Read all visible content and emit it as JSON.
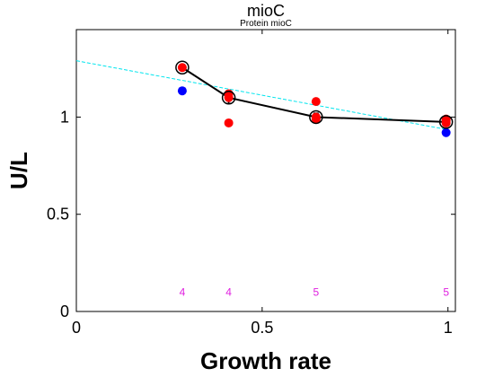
{
  "chart_data": {
    "type": "scatter",
    "title": "mioC",
    "subtitle": "Protein mioC",
    "xlabel": "Growth rate",
    "ylabel": "U/L",
    "xlim": [
      0,
      1.02
    ],
    "ylim": [
      0,
      1.45
    ],
    "x_ticks": [
      0,
      0.5,
      1
    ],
    "x_tick_labels": [
      "0",
      "0.5",
      "1"
    ],
    "y_ticks": [
      0,
      0.5,
      1
    ],
    "y_tick_labels": [
      "0",
      "0.5",
      "1"
    ],
    "grid": false,
    "colors": {
      "red": "#ff0000",
      "blue": "#0000ff",
      "mean": "#000000",
      "fit": "#00e5ee",
      "count": "#e020e0"
    },
    "series": [
      {
        "color": "red",
        "x": [
          0.285,
          0.41,
          0.41,
          0.41,
          0.645,
          0.645,
          0.645,
          0.995,
          0.995,
          0.995
        ],
        "y": [
          1.255,
          1.12,
          1.1,
          0.97,
          1.08,
          1.0,
          0.99,
          0.99,
          0.98,
          0.97
        ]
      },
      {
        "color": "blue",
        "x": [
          0.285,
          0.995
        ],
        "y": [
          1.135,
          0.92
        ]
      }
    ],
    "mean_line": {
      "x": [
        0.285,
        0.41,
        0.645,
        0.995
      ],
      "y": [
        1.255,
        1.1,
        1.0,
        0.975
      ],
      "err": [
        0.015,
        0.03,
        0.02,
        0.015
      ]
    },
    "fit_line": {
      "x": [
        0.0,
        1.0
      ],
      "y": [
        1.29,
        0.935
      ]
    },
    "counts": [
      {
        "x": 0.285,
        "label": "4"
      },
      {
        "x": 0.41,
        "label": "4"
      },
      {
        "x": 0.645,
        "label": "5"
      },
      {
        "x": 0.995,
        "label": "5"
      }
    ],
    "counts_y": 0.1
  }
}
